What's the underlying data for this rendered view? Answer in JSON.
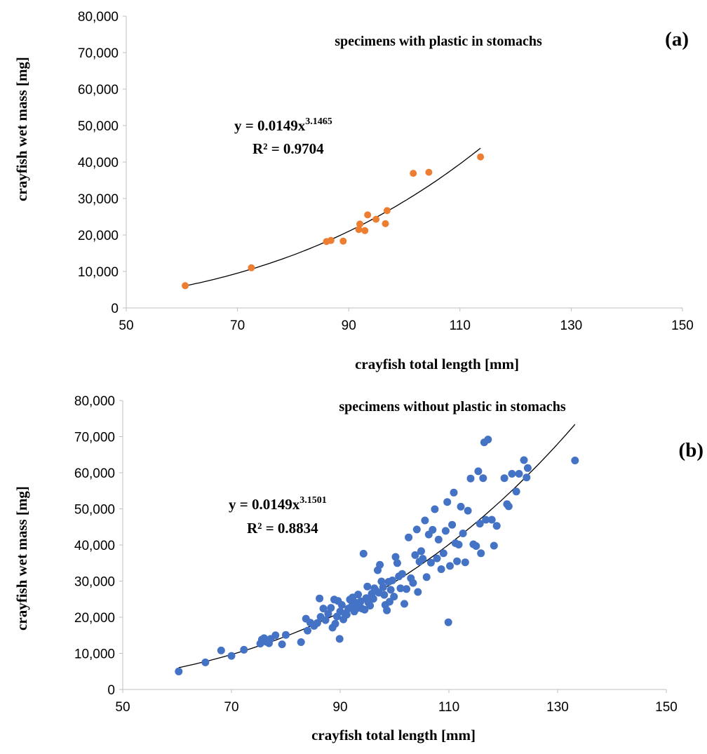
{
  "chart_data": [
    {
      "type": "scatter",
      "panel_label": "(a)",
      "title": "specimens with plastic in stomachs",
      "xlabel": "crayfish total length [mm]",
      "ylabel": "crayfish wet mass [mg]",
      "xlim": [
        50,
        150
      ],
      "ylim": [
        0,
        80000
      ],
      "xticks": [
        "50",
        "70",
        "90",
        "110",
        "130",
        "150"
      ],
      "yticks": [
        "0",
        "10,000",
        "20,000",
        "30,000",
        "40,000",
        "50,000",
        "60,000",
        "70,000",
        "80,000"
      ],
      "grid": false,
      "marker_color": "#ED7D31",
      "equation": {
        "lhs": "y = 0.0149x",
        "exponent": "3.1465",
        "r2": "R² = 0.9704"
      },
      "trendline": {
        "type": "power",
        "a": 0.0149,
        "b": 3.1465,
        "x_range": [
          60.5,
          113.7
        ],
        "color": "#000000"
      },
      "points": [
        [
          60.6,
          6100
        ],
        [
          72.5,
          11000
        ],
        [
          86.0,
          18200
        ],
        [
          86.8,
          18500
        ],
        [
          89.0,
          18300
        ],
        [
          91.8,
          21500
        ],
        [
          92.0,
          23000
        ],
        [
          92.9,
          21200
        ],
        [
          93.4,
          25500
        ],
        [
          94.9,
          24300
        ],
        [
          96.6,
          23100
        ],
        [
          96.9,
          26700
        ],
        [
          101.6,
          36900
        ],
        [
          104.4,
          37200
        ],
        [
          113.7,
          41400
        ]
      ]
    },
    {
      "type": "scatter",
      "panel_label": "(b)",
      "title": "specimens without plastic in stomachs",
      "xlabel": "crayfish total length [mm]",
      "ylabel": "crayfish wet mass [mg]",
      "xlim": [
        50,
        150
      ],
      "ylim": [
        0,
        80000
      ],
      "xticks": [
        "50",
        "70",
        "90",
        "110",
        "130",
        "150"
      ],
      "yticks": [
        "0",
        "10,000",
        "20,000",
        "30,000",
        "40,000",
        "50,000",
        "60,000",
        "70,000",
        "80,000"
      ],
      "grid": false,
      "marker_color": "#4472C4",
      "equation": {
        "lhs": "y = 0.0149x",
        "exponent": "3.1501",
        "r2": "R² = 0.8834"
      },
      "trendline": {
        "type": "power",
        "a": 0.0149,
        "b": 3.1501,
        "x_range": [
          60.3,
          133.2
        ],
        "color": "#000000"
      },
      "points": [
        [
          60.3,
          5000
        ],
        [
          65.2,
          7500
        ],
        [
          68.1,
          10800
        ],
        [
          70.0,
          9300
        ],
        [
          72.3,
          11000
        ],
        [
          75.3,
          12700
        ],
        [
          75.6,
          13800
        ],
        [
          76.0,
          14200
        ],
        [
          76.4,
          13200
        ],
        [
          76.9,
          12800
        ],
        [
          77.2,
          14000
        ],
        [
          78.1,
          15000
        ],
        [
          79.3,
          12500
        ],
        [
          80.0,
          15100
        ],
        [
          82.8,
          13100
        ],
        [
          83.7,
          19600
        ],
        [
          84.0,
          16300
        ],
        [
          84.5,
          18500
        ],
        [
          85.2,
          17600
        ],
        [
          85.8,
          18400
        ],
        [
          86.2,
          25200
        ],
        [
          86.4,
          20100
        ],
        [
          86.9,
          22400
        ],
        [
          87.3,
          19200
        ],
        [
          87.8,
          21000
        ],
        [
          88.3,
          22600
        ],
        [
          88.6,
          17100
        ],
        [
          88.9,
          24900
        ],
        [
          89.1,
          18200
        ],
        [
          89.4,
          20200
        ],
        [
          89.6,
          24500
        ],
        [
          89.9,
          14000
        ],
        [
          90.0,
          21600
        ],
        [
          90.3,
          23400
        ],
        [
          90.6,
          19400
        ],
        [
          90.9,
          21000
        ],
        [
          91.2,
          20700
        ],
        [
          91.5,
          22400
        ],
        [
          91.8,
          24900
        ],
        [
          92.1,
          23000
        ],
        [
          92.3,
          25500
        ],
        [
          92.6,
          21600
        ],
        [
          92.9,
          24000
        ],
        [
          93.1,
          22500
        ],
        [
          93.3,
          26300
        ],
        [
          93.5,
          23100
        ],
        [
          93.8,
          24400
        ],
        [
          94.0,
          22400
        ],
        [
          94.3,
          37600
        ],
        [
          94.5,
          22100
        ],
        [
          94.8,
          25300
        ],
        [
          95.0,
          28500
        ],
        [
          95.2,
          24000
        ],
        [
          95.5,
          23200
        ],
        [
          95.8,
          26500
        ],
        [
          96.1,
          25100
        ],
        [
          96.3,
          28000
        ],
        [
          96.6,
          27300
        ],
        [
          96.9,
          33000
        ],
        [
          97.1,
          26800
        ],
        [
          97.3,
          34500
        ],
        [
          97.6,
          29900
        ],
        [
          97.9,
          28300
        ],
        [
          98.1,
          26200
        ],
        [
          98.3,
          23400
        ],
        [
          98.6,
          21900
        ],
        [
          98.9,
          29800
        ],
        [
          99.1,
          24300
        ],
        [
          99.3,
          27600
        ],
        [
          99.6,
          30200
        ],
        [
          99.9,
          25700
        ],
        [
          100.2,
          36700
        ],
        [
          100.5,
          35000
        ],
        [
          100.8,
          31300
        ],
        [
          101.1,
          28000
        ],
        [
          101.4,
          32000
        ],
        [
          101.8,
          23700
        ],
        [
          102.2,
          27800
        ],
        [
          102.6,
          42100
        ],
        [
          103.0,
          30800
        ],
        [
          103.4,
          29500
        ],
        [
          103.8,
          37200
        ],
        [
          104.1,
          44300
        ],
        [
          104.3,
          27000
        ],
        [
          104.6,
          35400
        ],
        [
          104.9,
          38300
        ],
        [
          105.2,
          36200
        ],
        [
          105.6,
          46800
        ],
        [
          105.9,
          31100
        ],
        [
          106.3,
          42900
        ],
        [
          106.7,
          35100
        ],
        [
          107.0,
          44200
        ],
        [
          107.4,
          49900
        ],
        [
          107.8,
          36300
        ],
        [
          108.1,
          41500
        ],
        [
          108.6,
          33300
        ],
        [
          109.0,
          37700
        ],
        [
          109.4,
          43900
        ],
        [
          109.7,
          51900
        ],
        [
          109.9,
          18600
        ],
        [
          110.2,
          34200
        ],
        [
          110.6,
          45600
        ],
        [
          110.9,
          54500
        ],
        [
          111.2,
          40500
        ],
        [
          111.5,
          35500
        ],
        [
          111.8,
          40100
        ],
        [
          112.2,
          50600
        ],
        [
          112.6,
          43200
        ],
        [
          113.0,
          35200
        ],
        [
          113.5,
          49500
        ],
        [
          114.0,
          58400
        ],
        [
          114.5,
          40200
        ],
        [
          115.0,
          39700
        ],
        [
          115.4,
          60400
        ],
        [
          115.7,
          45900
        ],
        [
          115.9,
          37700
        ],
        [
          116.3,
          58500
        ],
        [
          116.5,
          68400
        ],
        [
          116.8,
          47000
        ],
        [
          117.2,
          69200
        ],
        [
          117.9,
          47000
        ],
        [
          118.3,
          39800
        ],
        [
          118.8,
          45300
        ],
        [
          120.2,
          58500
        ],
        [
          120.7,
          51300
        ],
        [
          121.0,
          50700
        ],
        [
          121.6,
          59700
        ],
        [
          122.4,
          54800
        ],
        [
          122.9,
          59700
        ],
        [
          123.8,
          63500
        ],
        [
          124.5,
          61300
        ],
        [
          124.3,
          58700
        ],
        [
          133.2,
          63400
        ]
      ]
    }
  ]
}
